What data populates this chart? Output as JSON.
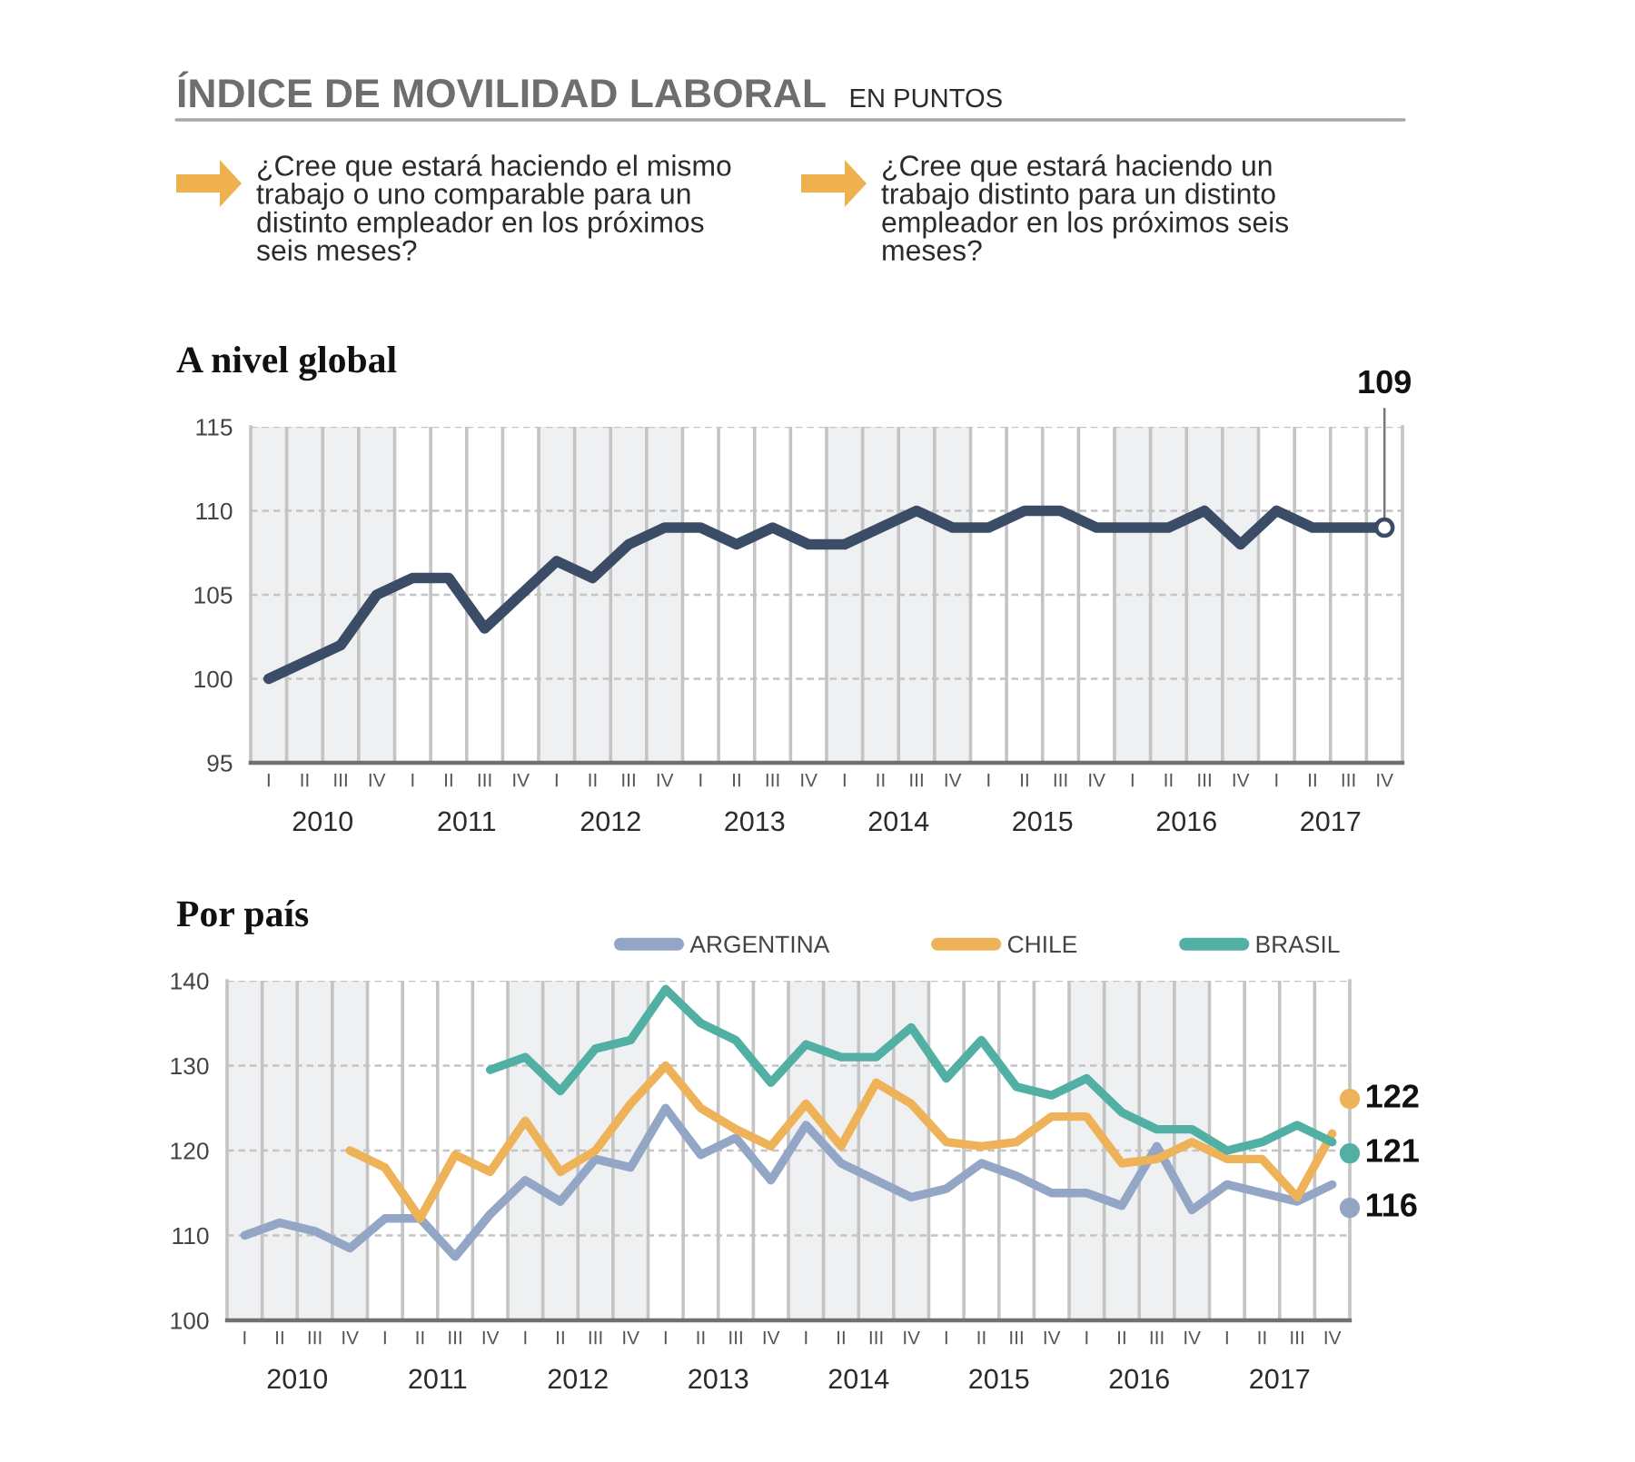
{
  "chart_data": [
    {
      "type": "other",
      "title": "ÍNDICE DE MOVILIDAD LABORAL",
      "subtitle": "EN PUNTOS",
      "annotations": [
        "¿Cree que estará haciendo el mismo\ntrabajo o uno comparable para un\ndistinto empleador en los próximos\nseis meses?",
        "¿Cree que estará haciendo un\ntrabajo distinto para un distinto\nempleador en los próximos seis\nmeses?"
      ]
    },
    {
      "type": "line",
      "title": "A nivel global",
      "categories": [
        "I",
        "II",
        "III",
        "IV",
        "I",
        "II",
        "III",
        "IV",
        "I",
        "II",
        "III",
        "IV",
        "I",
        "II",
        "III",
        "IV",
        "I",
        "II",
        "III",
        "IV",
        "I",
        "II",
        "III",
        "IV",
        "I",
        "II",
        "III",
        "IV",
        "I",
        "II",
        "III",
        "IV"
      ],
      "values": [
        100,
        101,
        102,
        105,
        106,
        106,
        103,
        105,
        107,
        106,
        108,
        109,
        109,
        108,
        109,
        108,
        108,
        109,
        110,
        109,
        109,
        110,
        110,
        109,
        109,
        109,
        110,
        108,
        110,
        109,
        109,
        109
      ],
      "color": "#3b4d66",
      "value_labels": [
        null,
        null,
        null,
        null,
        null,
        null,
        null,
        null,
        null,
        null,
        null,
        null,
        null,
        null,
        null,
        null,
        null,
        null,
        null,
        null,
        null,
        null,
        null,
        null,
        null,
        null,
        null,
        null,
        null,
        null,
        null,
        "109"
      ],
      "ylim": [
        95,
        115
      ],
      "yticks": [
        95,
        100,
        105,
        110,
        115
      ],
      "grid": true,
      "x2lim": [
        2010,
        2018
      ],
      "x2ticks": [
        {
          "value": 2010.5,
          "label": "2010"
        },
        {
          "value": 2011.5,
          "label": "2011"
        },
        {
          "value": 2012.5,
          "label": "2012"
        },
        {
          "value": 2013.5,
          "label": "2013"
        },
        {
          "value": 2014.5,
          "label": "2014"
        },
        {
          "value": 2015.5,
          "label": "2015"
        },
        {
          "value": 2016.5,
          "label": "2016"
        },
        {
          "value": 2017.5,
          "label": "2017"
        }
      ]
    },
    {
      "type": "line",
      "title": "Por país",
      "categories": [
        "I",
        "II",
        "III",
        "IV",
        "I",
        "II",
        "III",
        "IV",
        "I",
        "II",
        "III",
        "IV",
        "I",
        "II",
        "III",
        "IV",
        "I",
        "II",
        "III",
        "IV",
        "I",
        "II",
        "III",
        "IV",
        "I",
        "II",
        "III",
        "IV",
        "I",
        "II",
        "III",
        "IV"
      ],
      "series": [
        {
          "name": "ARGENTINA",
          "color": "#93a6c6",
          "values": [
            110,
            111.5,
            110.5,
            108.5,
            112,
            112,
            107.5,
            112.5,
            116.5,
            114,
            119,
            118,
            125,
            119.5,
            121.5,
            116.5,
            123,
            118.5,
            116.5,
            114.5,
            115.5,
            118.5,
            117,
            115,
            115,
            113.5,
            120.5,
            113,
            116,
            115,
            114,
            116
          ],
          "value_labels": [
            null,
            null,
            null,
            null,
            null,
            null,
            null,
            null,
            null,
            null,
            null,
            null,
            null,
            null,
            null,
            null,
            null,
            null,
            null,
            null,
            null,
            null,
            null,
            null,
            null,
            null,
            null,
            null,
            null,
            null,
            null,
            "116"
          ]
        },
        {
          "name": "CHILE",
          "color": "#eeb358",
          "values": [
            null,
            null,
            null,
            120,
            118,
            112,
            119.5,
            117.5,
            123.5,
            117.5,
            120,
            125.5,
            130,
            125,
            122.5,
            120.5,
            125.5,
            120.5,
            128,
            125.5,
            121,
            120.5,
            121,
            124,
            124,
            118.5,
            119,
            121,
            119,
            119,
            114.5,
            122
          ],
          "value_labels": [
            null,
            null,
            null,
            null,
            null,
            null,
            null,
            null,
            null,
            null,
            null,
            null,
            null,
            null,
            null,
            null,
            null,
            null,
            null,
            null,
            null,
            null,
            null,
            null,
            null,
            null,
            null,
            null,
            null,
            null,
            null,
            "122"
          ]
        },
        {
          "name": "BRASIL",
          "color": "#52afa3",
          "values": [
            null,
            null,
            null,
            null,
            null,
            null,
            null,
            129.5,
            131,
            127,
            132,
            133,
            139,
            135,
            133,
            128,
            132.5,
            131,
            131,
            134.5,
            128.5,
            133,
            127.5,
            126.5,
            128.5,
            124.5,
            122.5,
            122.5,
            120,
            121,
            123,
            121
          ],
          "value_labels": [
            null,
            null,
            null,
            null,
            null,
            null,
            null,
            null,
            null,
            null,
            null,
            null,
            null,
            null,
            null,
            null,
            null,
            null,
            null,
            null,
            null,
            null,
            null,
            null,
            null,
            null,
            null,
            null,
            null,
            null,
            null,
            "121"
          ]
        }
      ],
      "ylim": [
        100,
        140
      ],
      "yticks": [
        100,
        110,
        120,
        130,
        140
      ],
      "grid": true,
      "legend": "top right",
      "x2lim": [
        2010,
        2018
      ],
      "x2ticks": [
        {
          "value": 2010.5,
          "label": "2010"
        },
        {
          "value": 2011.5,
          "label": "2011"
        },
        {
          "value": 2012.5,
          "label": "2012"
        },
        {
          "value": 2013.5,
          "label": "2013"
        },
        {
          "value": 2014.5,
          "label": "2014"
        },
        {
          "value": 2015.5,
          "label": "2015"
        },
        {
          "value": 2016.5,
          "label": "2016"
        },
        {
          "value": 2017.5,
          "label": "2017"
        }
      ]
    }
  ]
}
